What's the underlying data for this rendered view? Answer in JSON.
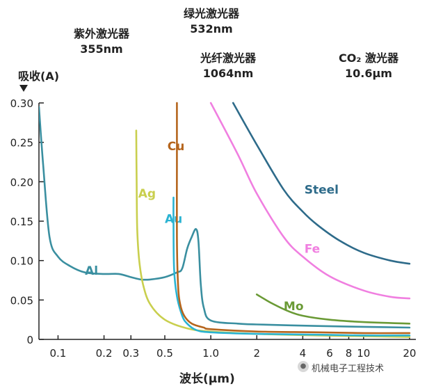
{
  "chart_data": {
    "type": "line",
    "xscale": "log",
    "xlabel": "波长(μm)",
    "ylabel": "吸收(A)",
    "xlim": [
      0.075,
      22
    ],
    "ylim": [
      0,
      0.3
    ],
    "xticks": [
      0.1,
      0.2,
      0.3,
      0.5,
      1.0,
      2,
      4,
      6,
      8,
      10,
      20
    ],
    "xtick_labels": [
      "0.1",
      "0.2",
      "0.3",
      "0.5",
      "1.0",
      "2",
      "4",
      "6",
      "8",
      "10",
      "20"
    ],
    "yticks": [
      0,
      0.05,
      0.1,
      0.15,
      0.2,
      0.25,
      0.3
    ],
    "ytick_labels": [
      "0",
      "0.05",
      "0.10",
      "0.15",
      "0.20",
      "0.25",
      "0.30"
    ],
    "annotations": [
      {
        "line1": "紫外激光器",
        "line2": "355nm"
      },
      {
        "line1": "绿光激光器",
        "line2": "532nm"
      },
      {
        "line1": "光纤激光器",
        "line2": "1064nm"
      },
      {
        "line1": "CO₂ 激光器",
        "line2": "10.6μm"
      }
    ],
    "series": [
      {
        "name": "Al",
        "color": "#3a8fa0",
        "label_at": [
          0.15,
          0.082
        ],
        "x": [
          0.075,
          0.08,
          0.088,
          0.1,
          0.12,
          0.15,
          0.2,
          0.25,
          0.3,
          0.35,
          0.4,
          0.5,
          0.6,
          0.65,
          0.7,
          0.75,
          0.8,
          0.83,
          0.86,
          0.9,
          1.0,
          1.5,
          2,
          5,
          10,
          20
        ],
        "y": [
          0.295,
          0.22,
          0.13,
          0.105,
          0.093,
          0.085,
          0.083,
          0.083,
          0.079,
          0.076,
          0.076,
          0.079,
          0.085,
          0.09,
          0.115,
          0.13,
          0.14,
          0.125,
          0.07,
          0.04,
          0.024,
          0.02,
          0.019,
          0.017,
          0.016,
          0.015
        ]
      },
      {
        "name": "Ag",
        "color": "#c9cf4e",
        "label_at": [
          0.335,
          0.18
        ],
        "x": [
          0.325,
          0.327,
          0.33,
          0.34,
          0.36,
          0.4,
          0.5,
          0.7,
          1.0,
          2,
          5,
          10,
          20
        ],
        "y": [
          0.265,
          0.2,
          0.14,
          0.1,
          0.07,
          0.045,
          0.025,
          0.014,
          0.01,
          0.007,
          0.005,
          0.004,
          0.003
        ]
      },
      {
        "name": "Au",
        "color": "#2ab3d2",
        "label_at": [
          0.5,
          0.148
        ],
        "x": [
          0.57,
          0.57,
          0.575,
          0.6,
          0.65,
          0.7,
          0.8,
          1.0,
          2,
          5,
          10,
          20
        ],
        "y": [
          0.18,
          0.15,
          0.09,
          0.055,
          0.03,
          0.02,
          0.012,
          0.009,
          0.007,
          0.006,
          0.005,
          0.005
        ]
      },
      {
        "name": "Cu",
        "color": "#b5651d",
        "label_at": [
          0.52,
          0.24
        ],
        "x": [
          0.6,
          0.6,
          0.6,
          0.61,
          0.63,
          0.67,
          0.75,
          0.9,
          1.0,
          2,
          5,
          10,
          20
        ],
        "y": [
          0.3,
          0.22,
          0.13,
          0.07,
          0.045,
          0.03,
          0.02,
          0.015,
          0.013,
          0.01,
          0.009,
          0.008,
          0.008
        ]
      },
      {
        "name": "Steel",
        "color": "#2e6b8a",
        "label_at": [
          4.1,
          0.185
        ],
        "x": [
          1.4,
          2,
          3,
          4,
          5,
          7,
          10,
          15,
          20
        ],
        "y": [
          0.3,
          0.247,
          0.19,
          0.162,
          0.145,
          0.125,
          0.11,
          0.1,
          0.096
        ]
      },
      {
        "name": "Fe",
        "color": "#f07fe0",
        "label_at": [
          4.1,
          0.11
        ],
        "x": [
          1.0,
          1.5,
          2,
          3,
          4,
          6,
          10,
          15,
          20
        ],
        "y": [
          0.3,
          0.235,
          0.185,
          0.13,
          0.105,
          0.08,
          0.062,
          0.054,
          0.052
        ]
      },
      {
        "name": "Mo",
        "color": "#6a9a35",
        "label_at": [
          3.0,
          0.037
        ],
        "x": [
          2.0,
          2.5,
          3.2,
          4,
          6,
          10,
          20
        ],
        "y": [
          0.057,
          0.046,
          0.036,
          0.03,
          0.025,
          0.022,
          0.02
        ]
      }
    ]
  },
  "watermark": "机械电子工程技术",
  "watermark_icon": "wechat-icon"
}
